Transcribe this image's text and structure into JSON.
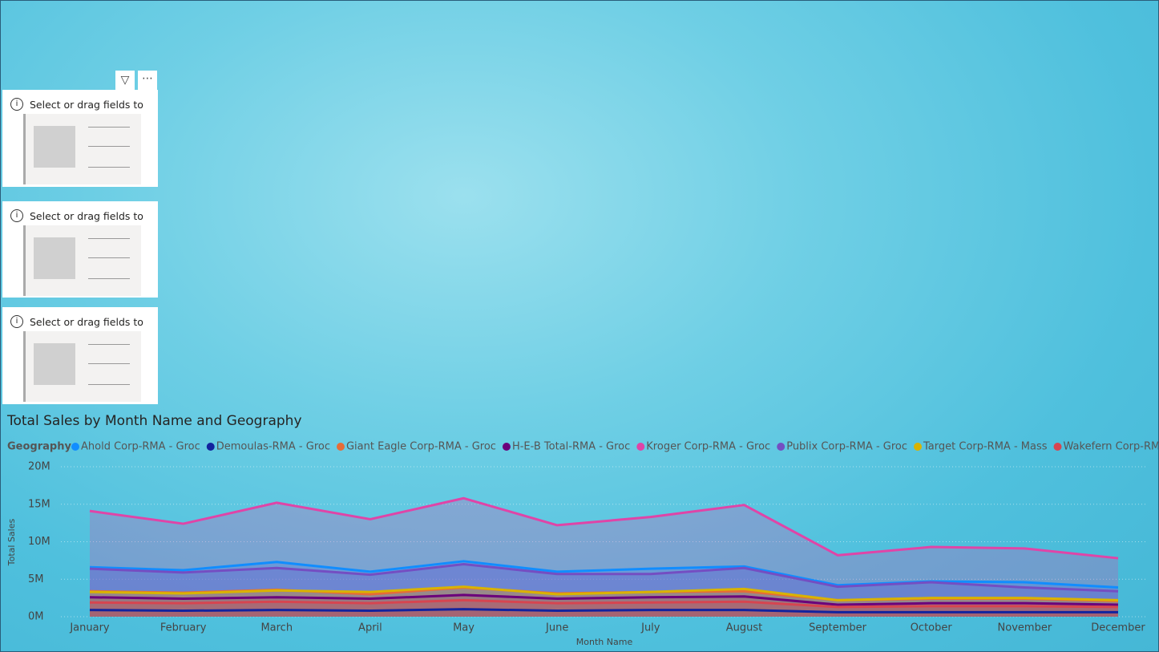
{
  "placeholders": [
    {
      "text": "Select or drag fields to"
    },
    {
      "text": "Select or drag fields to"
    },
    {
      "text": "Select or drag fields to"
    }
  ],
  "chart_data": {
    "type": "area",
    "title": "Total Sales by Month Name and Geography",
    "legend_title": "Geography",
    "x_label": "Month Name",
    "y_label": "Total Sales",
    "categories": [
      "January",
      "February",
      "March",
      "April",
      "May",
      "June",
      "July",
      "August",
      "September",
      "October",
      "November",
      "December"
    ],
    "ylim": [
      0,
      20000000
    ],
    "yticks": [
      {
        "value": 0,
        "label": "0M"
      },
      {
        "value": 5000000,
        "label": "5M"
      },
      {
        "value": 10000000,
        "label": "10M"
      },
      {
        "value": 15000000,
        "label": "15M"
      },
      {
        "value": 20000000,
        "label": "20M"
      }
    ],
    "grid": true,
    "series": [
      {
        "name": "Ahold Corp-RMA - Groc",
        "color": "#118dff",
        "values": [
          6600000,
          6200000,
          7300000,
          6000000,
          7400000,
          6000000,
          6400000,
          6700000,
          4200000,
          4700000,
          4600000,
          3900000
        ]
      },
      {
        "name": "Demoulas-RMA - Groc",
        "color": "#12239e",
        "values": [
          900000,
          800000,
          900000,
          800000,
          1000000,
          800000,
          900000,
          900000,
          600000,
          600000,
          600000,
          600000
        ]
      },
      {
        "name": "Giant Eagle Corp-RMA - Groc",
        "color": "#e66c37",
        "values": [
          3400000,
          3200000,
          3600000,
          3000000,
          3900000,
          3100000,
          3300000,
          3400000,
          2200000,
          2400000,
          2400000,
          2100000
        ]
      },
      {
        "name": "H-E-B Total-RMA - Groc",
        "color": "#6b007b",
        "values": [
          2600000,
          2400000,
          2600000,
          2400000,
          2900000,
          2400000,
          2600000,
          2700000,
          1600000,
          1800000,
          1800000,
          1600000
        ]
      },
      {
        "name": "Kroger Corp-RMA - Groc",
        "color": "#e044a7",
        "values": [
          14100000,
          12400000,
          15200000,
          13000000,
          15800000,
          12200000,
          13300000,
          14900000,
          8200000,
          9300000,
          9100000,
          7800000
        ]
      },
      {
        "name": "Publix Corp-RMA - Groc",
        "color": "#744ec2",
        "values": [
          6400000,
          5900000,
          6500000,
          5600000,
          7000000,
          5700000,
          5700000,
          6500000,
          4000000,
          4600000,
          3900000,
          3400000
        ]
      },
      {
        "name": "Target Corp-RMA - Mass",
        "color": "#d9b300",
        "values": [
          3300000,
          3100000,
          3500000,
          3300000,
          4000000,
          3000000,
          3300000,
          3700000,
          2200000,
          2500000,
          2500000,
          2200000
        ]
      },
      {
        "name": "Wakefern Corp-RMA - Gr...",
        "color": "#d64550",
        "values": [
          1900000,
          1800000,
          2000000,
          1800000,
          2200000,
          1800000,
          1900000,
          2000000,
          1300000,
          1400000,
          1400000,
          1300000
        ]
      }
    ]
  }
}
